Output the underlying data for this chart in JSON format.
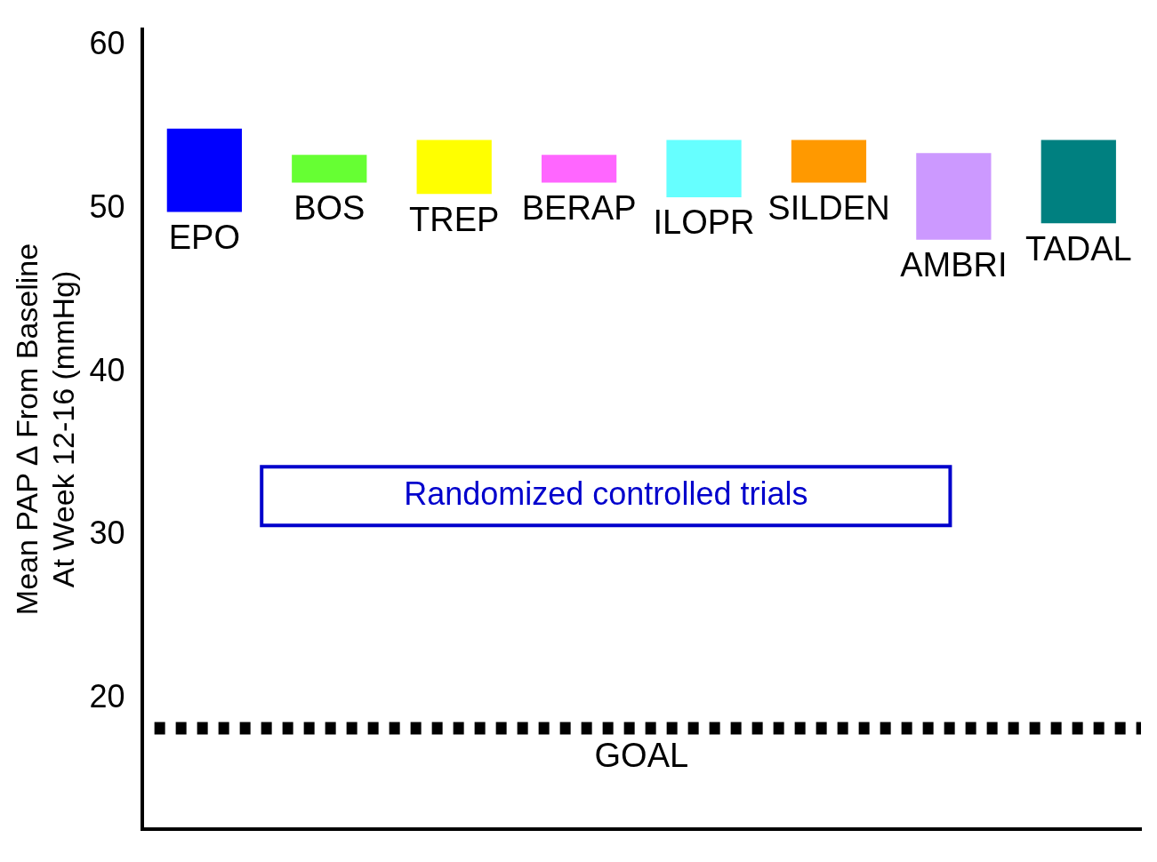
{
  "chart_data": {
    "type": "bar",
    "ylabel": "Mean PAP ∆ From Baseline\nAt Week 12-16 (mmHg)",
    "categories": [
      "EPO",
      "BOS",
      "TREP",
      "BERAP",
      "ILOPR",
      "SILDEN",
      "AMBRI",
      "TADAL"
    ],
    "base": [
      49.8,
      51.6,
      50.9,
      51.6,
      50.7,
      51.6,
      48.1,
      49.1
    ],
    "values": [
      5.1,
      1.7,
      3.3,
      1.7,
      3.5,
      2.6,
      5.3,
      5.1
    ],
    "colors": [
      "#0000ff",
      "#66ff33",
      "#ffff00",
      "#ff66ff",
      "#66ffff",
      "#ff9900",
      "#cc99ff",
      "#008080"
    ],
    "ylim": [
      12,
      61
    ],
    "yticks": [
      20,
      30,
      40,
      50,
      60
    ],
    "grid": false,
    "legend": false,
    "ref_lines": [
      {
        "axis": "y",
        "value": 18.2,
        "label": "GOAL",
        "line_style": "dotted",
        "color": "#000000"
      }
    ],
    "annotations": [
      "Randomized controlled trials"
    ]
  }
}
